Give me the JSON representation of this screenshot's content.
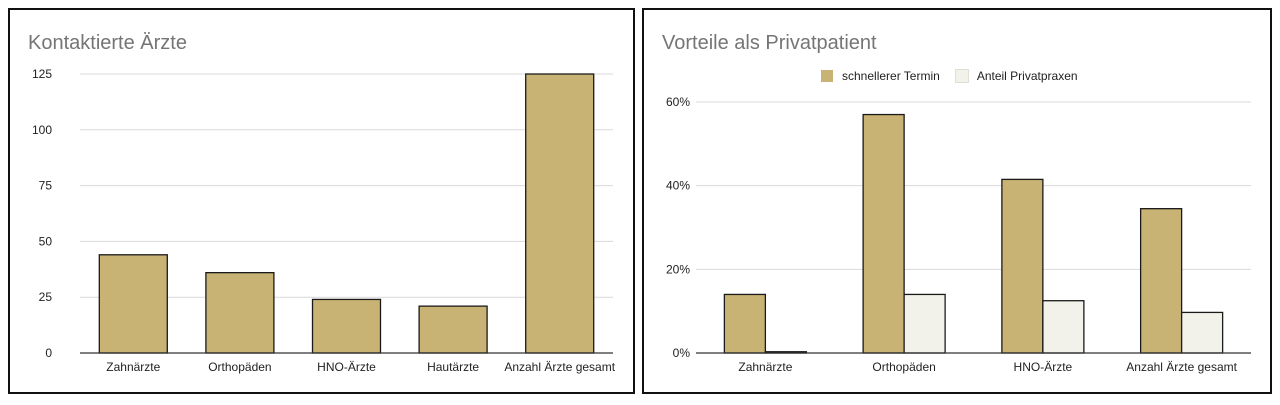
{
  "colors": {
    "gold": "#c8b274",
    "cream": "#f3f2ea",
    "grid": "#d9d9d9",
    "axis": "#333333",
    "title": "#757575"
  },
  "chart_data": [
    {
      "type": "bar",
      "title": "Kontaktierte Ärzte",
      "categories": [
        "Zahnärzte",
        "Orthopäden",
        "HNO-Ärzte",
        "Hautärzte",
        "Anzahl Ärzte gesamt"
      ],
      "series": [
        {
          "values": [
            44,
            36,
            24,
            21,
            125
          ]
        }
      ],
      "xlabel": "",
      "ylabel": "",
      "ylim": [
        0,
        125
      ],
      "yticks": [
        0,
        25,
        50,
        75,
        100,
        125
      ],
      "ytick_labels": [
        "0",
        "25",
        "50",
        "75",
        "100",
        "125"
      ],
      "grid": true,
      "legend": "none"
    },
    {
      "type": "bar",
      "title": "Vorteile als Privatpatient",
      "categories": [
        "Zahnärzte",
        "Orthopäden",
        "HNO-Ärzte",
        "Anzahl Ärzte gesamt"
      ],
      "series": [
        {
          "name": "schnellerer Termin",
          "values": [
            0.14,
            0.57,
            0.415,
            0.345
          ]
        },
        {
          "name": "Anteil Privatpraxen",
          "values": [
            0.003,
            0.14,
            0.125,
            0.097
          ]
        }
      ],
      "xlabel": "",
      "ylabel": "",
      "ylim": [
        0,
        0.6
      ],
      "yticks": [
        0,
        0.2,
        0.4,
        0.6
      ],
      "ytick_labels": [
        "0%",
        "20%",
        "40%",
        "60%"
      ],
      "grid": true,
      "legend": "top"
    }
  ]
}
